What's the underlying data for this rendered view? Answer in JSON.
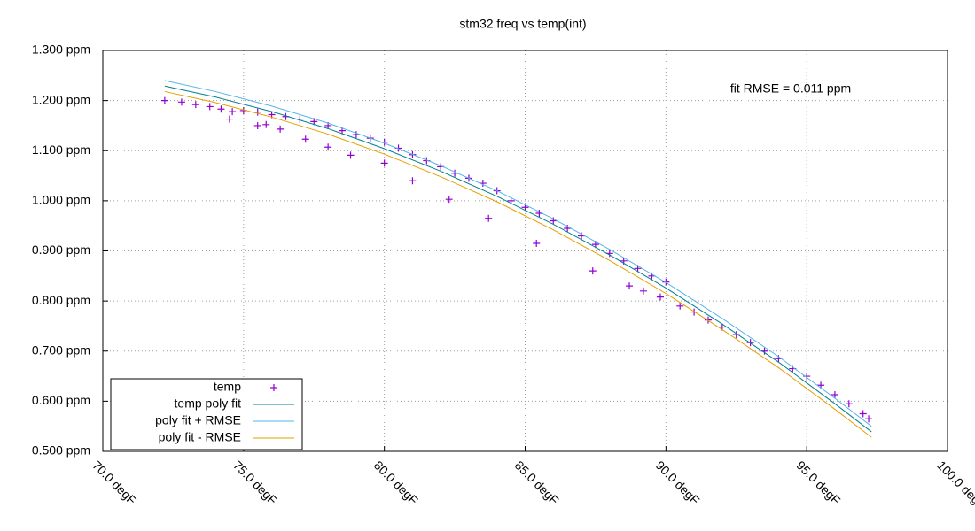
{
  "chart_data": {
    "type": "scatter",
    "title": "stm32 freq vs temp(int)",
    "annotation": "fit RMSE = 0.011 ppm",
    "xlim": [
      70,
      100
    ],
    "ylim": [
      0.5,
      1.3
    ],
    "xticks": [
      {
        "value": 70,
        "label": "70.0 degF"
      },
      {
        "value": 75,
        "label": "75.0 degF"
      },
      {
        "value": 80,
        "label": "80.0 degF"
      },
      {
        "value": 85,
        "label": "85.0 degF"
      },
      {
        "value": 90,
        "label": "90.0 degF"
      },
      {
        "value": 95,
        "label": "95.0 degF"
      },
      {
        "value": 100,
        "label": "100.0 degF"
      }
    ],
    "yticks": [
      {
        "value": 0.5,
        "label": "0.500 ppm"
      },
      {
        "value": 0.6,
        "label": "0.600 ppm"
      },
      {
        "value": 0.7,
        "label": "0.700 ppm"
      },
      {
        "value": 0.8,
        "label": "0.800 ppm"
      },
      {
        "value": 0.9,
        "label": "0.900 ppm"
      },
      {
        "value": 1.0,
        "label": "1.000 ppm"
      },
      {
        "value": 1.1,
        "label": "1.100 ppm"
      },
      {
        "value": 1.2,
        "label": "1.200 ppm"
      },
      {
        "value": 1.3,
        "label": "1.300 ppm"
      }
    ],
    "grid": true,
    "legend": "bottom-left",
    "series": [
      {
        "name": "temp",
        "color": "#9400d3",
        "style": "points",
        "x": [
          72.2,
          72.8,
          73.3,
          73.8,
          74.2,
          74.6,
          75.0,
          75.5,
          76.0,
          76.5,
          77.0,
          77.5,
          78.0,
          78.5,
          79.0,
          79.5,
          80.0,
          80.5,
          81.0,
          81.5,
          82.0,
          82.5,
          83.0,
          83.5,
          84.0,
          84.5,
          85.0,
          85.5,
          86.0,
          86.5,
          87.0,
          87.5,
          88.0,
          88.5,
          89.0,
          89.5,
          90.0,
          88.7,
          89.2,
          89.8,
          90.5,
          91.0,
          91.5,
          92.0,
          92.5,
          93.0,
          93.5,
          94.0,
          94.5,
          95.0,
          95.5,
          96.0,
          96.5,
          97.0,
          97.2,
          74.5,
          75.5,
          75.8,
          76.3,
          77.2,
          78.0,
          78.8,
          80.0,
          81.0,
          82.3,
          83.7,
          85.4,
          87.4
        ],
        "values": [
          1.2,
          1.197,
          1.192,
          1.188,
          1.183,
          1.178,
          1.18,
          1.177,
          1.172,
          1.168,
          1.163,
          1.158,
          1.15,
          1.14,
          1.132,
          1.125,
          1.117,
          1.105,
          1.092,
          1.08,
          1.068,
          1.055,
          1.045,
          1.035,
          1.02,
          1.0,
          0.987,
          0.975,
          0.96,
          0.945,
          0.93,
          0.913,
          0.895,
          0.88,
          0.865,
          0.85,
          0.838,
          0.83,
          0.82,
          0.808,
          0.79,
          0.778,
          0.762,
          0.748,
          0.733,
          0.717,
          0.7,
          0.685,
          0.665,
          0.65,
          0.632,
          0.613,
          0.595,
          0.575,
          0.565,
          1.163,
          1.15,
          1.152,
          1.143,
          1.123,
          1.107,
          1.091,
          1.075,
          1.04,
          1.003,
          0.965,
          0.915,
          0.86
        ]
      },
      {
        "name": "temp poly fit",
        "color": "#00808f",
        "style": "lines",
        "x": [
          72.2,
          74,
          76,
          78,
          80,
          82,
          84,
          86,
          88,
          90,
          92,
          94,
          96,
          97.3
        ],
        "values": [
          1.229,
          1.207,
          1.178,
          1.144,
          1.104,
          1.059,
          1.009,
          0.953,
          0.892,
          0.826,
          0.754,
          0.678,
          0.595,
          0.539
        ]
      },
      {
        "name": "poly fit + RMSE",
        "color": "#56b4e9",
        "style": "lines",
        "x": [
          72.2,
          74,
          76,
          78,
          80,
          82,
          84,
          86,
          88,
          90,
          92,
          94,
          96,
          97.3
        ],
        "values": [
          1.24,
          1.218,
          1.189,
          1.155,
          1.115,
          1.07,
          1.02,
          0.964,
          0.903,
          0.837,
          0.765,
          0.689,
          0.606,
          0.55
        ]
      },
      {
        "name": "poly fit - RMSE",
        "color": "#e69f00",
        "style": "lines",
        "x": [
          72.2,
          74,
          76,
          78,
          80,
          82,
          84,
          86,
          88,
          90,
          92,
          94,
          96,
          97.3
        ],
        "values": [
          1.218,
          1.196,
          1.167,
          1.133,
          1.093,
          1.048,
          0.998,
          0.942,
          0.881,
          0.815,
          0.743,
          0.667,
          0.584,
          0.528
        ]
      }
    ]
  }
}
